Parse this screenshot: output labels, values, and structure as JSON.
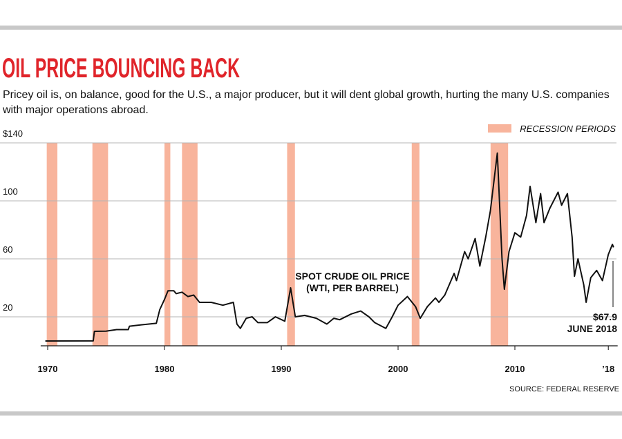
{
  "chart_data": {
    "type": "line",
    "title": "OIL PRICE BOUNCING BACK",
    "subtitle": "Pricey oil is, on balance, good for the U.S., a major producer, but it will dent global growth, hurting the many U.S. companies with major operations abroad.",
    "source": "SOURCE: FEDERAL RESERVE",
    "legend_label": "RECESSION PERIODS",
    "recession_color": "#f8b49c",
    "recessions": [
      [
        1969.92,
        1970.83
      ],
      [
        1973.83,
        1975.17
      ],
      [
        1980.0,
        1980.5
      ],
      [
        1981.5,
        1982.83
      ],
      [
        1990.5,
        1991.17
      ],
      [
        2001.17,
        2001.83
      ],
      [
        2007.92,
        2009.42
      ]
    ],
    "line_label": [
      "SPOT CRUDE OIL PRICE",
      "(WTI, PER BARREL)"
    ],
    "end_label": [
      "$67.9",
      "JUNE 2018"
    ],
    "color": "#111111",
    "x": [
      1969.8,
      1973.9,
      1974.0,
      1975.0,
      1975.9,
      1976.0,
      1976.9,
      1977.0,
      1978.0,
      1979.3,
      1979.6,
      1980.0,
      1980.3,
      1980.8,
      1981.0,
      1981.5,
      1982.0,
      1982.5,
      1982.8,
      1983.0,
      1984.0,
      1985.0,
      1985.9,
      1986.2,
      1986.5,
      1987.0,
      1987.5,
      1988.0,
      1988.8,
      1989.5,
      1990.3,
      1990.8,
      1991.2,
      1992.0,
      1993.0,
      1993.9,
      1994.5,
      1995.0,
      1996.0,
      1996.8,
      1997.5,
      1998.0,
      1998.95,
      1999.5,
      2000.0,
      2000.8,
      2001.5,
      2001.9,
      2002.5,
      2003.2,
      2003.5,
      2004.0,
      2004.8,
      2005.0,
      2005.7,
      2006.0,
      2006.6,
      2007.0,
      2007.5,
      2007.9,
      2008.5,
      2008.9,
      2009.1,
      2009.5,
      2010.0,
      2010.5,
      2011.0,
      2011.3,
      2011.8,
      2012.2,
      2012.5,
      2013.0,
      2013.7,
      2014.0,
      2014.5,
      2014.9,
      2015.1,
      2015.4,
      2015.9,
      2016.1,
      2016.5,
      2017.0,
      2017.5,
      2018.0,
      2018.35,
      2018.45
    ],
    "values": [
      3.35,
      3.4,
      10,
      10.1,
      11.2,
      11.2,
      11.2,
      13.5,
      14.5,
      15.5,
      25,
      32,
      38,
      38,
      36,
      37,
      34,
      35,
      32,
      30,
      30,
      28,
      30,
      15,
      12,
      19,
      20,
      16,
      16,
      20,
      17,
      40,
      20,
      21,
      19,
      15,
      19,
      18,
      22,
      24,
      20,
      16,
      12,
      20,
      28,
      34,
      27,
      19,
      27,
      33,
      30,
      35,
      50,
      45,
      65,
      60,
      74,
      55,
      75,
      93,
      133,
      60,
      39,
      65,
      78,
      75,
      90,
      110,
      85,
      105,
      85,
      95,
      106,
      97,
      105,
      75,
      48,
      60,
      42,
      30,
      47,
      52,
      45,
      63,
      70,
      67.9
    ],
    "xlim": [
      1969.4,
      2018.8
    ],
    "ylim": [
      0,
      140
    ],
    "xticks": [
      1970,
      1980,
      1990,
      2000,
      2010,
      {
        "value": 2018,
        "label": "’18"
      }
    ],
    "yticks": [
      20,
      60,
      100,
      {
        "value": 140,
        "label": "$140"
      }
    ],
    "grid": true
  }
}
